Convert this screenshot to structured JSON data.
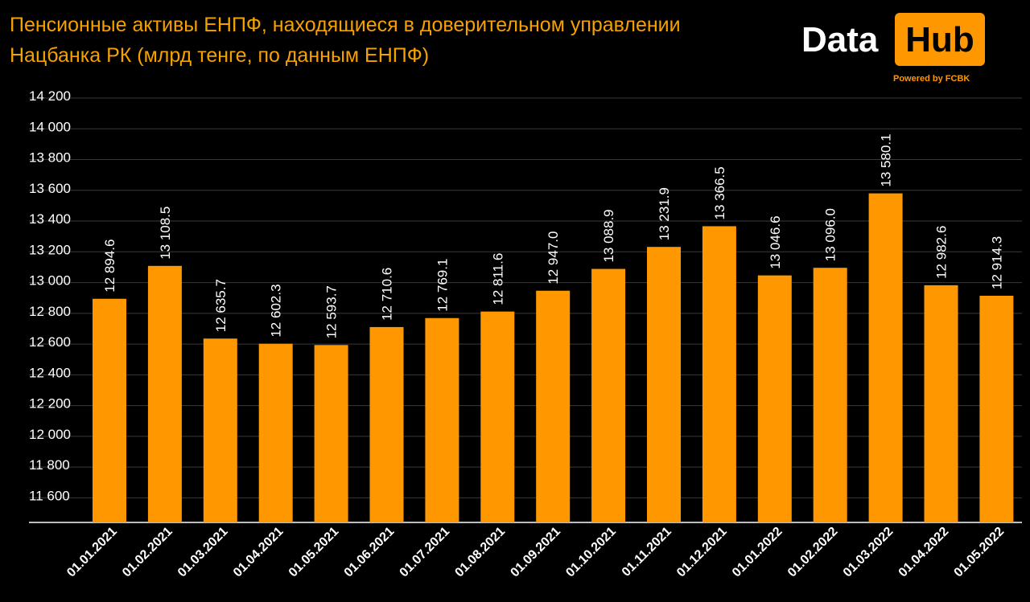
{
  "header": {
    "title_line1": "Пенсионные активы ЕНПФ, находящиеся в доверительном управлении",
    "title_line2": "Нацбанка РК (млрд тенге, по данным ЕНПФ)"
  },
  "logo": {
    "word": "Data",
    "box_word": "Hub",
    "tagline": "Powered by FCBK"
  },
  "colors": {
    "background": "#000000",
    "bar": "#ff9800",
    "title": "#f5a100",
    "text": "#ffffff",
    "grid": "#3a3a3a"
  },
  "chart_data": {
    "type": "bar",
    "categories": [
      "01.01.2021",
      "01.02.2021",
      "01.03.2021",
      "01.04.2021",
      "01.05.2021",
      "01.06.2021",
      "01.07.2021",
      "01.08.2021",
      "01.09.2021",
      "01.10.2021",
      "01.11.2021",
      "01.12.2021",
      "01.01.2022",
      "01.02.2022",
      "01.03.2022",
      "01.04.2022",
      "01.05.2022"
    ],
    "values": [
      12894.6,
      13108.5,
      12635.7,
      12602.3,
      12593.7,
      12710.6,
      12769.1,
      12811.6,
      12947.0,
      13088.9,
      13231.9,
      13366.5,
      13046.6,
      13096.0,
      13580.1,
      12982.6,
      12914.3
    ],
    "value_labels": [
      "12 894.6",
      "13 108.5",
      "12 635.7",
      "12 602.3",
      "12 593.7",
      "12 710.6",
      "12 769.1",
      "12 811.6",
      "12 947.0",
      "13 088.9",
      "13 231.9",
      "13 366.5",
      "13 046.6",
      "13 096.0",
      "13 580.1",
      "12 982.6",
      "12 914.3"
    ],
    "y_ticks": [
      11600,
      11800,
      12000,
      12200,
      12400,
      12600,
      12800,
      13000,
      13200,
      13400,
      13600,
      13800,
      14000,
      14200
    ],
    "y_tick_labels": [
      "11 600",
      "11 800",
      "12 000",
      "12 200",
      "12 400",
      "12 600",
      "12 800",
      "13 000",
      "13 200",
      "13 400",
      "13 600",
      "13 800",
      "14 000",
      "14 200"
    ],
    "ylim": [
      11440,
      14200
    ],
    "grid": true,
    "legend": "none"
  }
}
